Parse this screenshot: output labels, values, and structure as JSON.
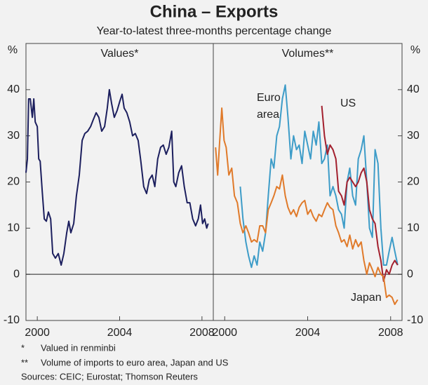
{
  "title": "China – Exports",
  "subtitle": "Year-to-latest three-months percentage change",
  "notes": [
    {
      "marker": "*",
      "text": "Valued in renminbi"
    },
    {
      "marker": "**",
      "text": "Volume of imports to euro area, Japan and US"
    }
  ],
  "sources": "Sources:  CEIC; Eurostat; Thomson Reuters",
  "chart_data": [
    {
      "type": "line",
      "title": "Values*",
      "y_label": "%",
      "axis_side": "left",
      "xlim": [
        1999.45,
        2008.55
      ],
      "xticks": [
        2000,
        2004,
        2008
      ],
      "ylim": [
        -10,
        50
      ],
      "yticks": [
        -10,
        0,
        10,
        20,
        30,
        40
      ],
      "x": [
        1999.45,
        1999.52,
        1999.58,
        1999.66,
        1999.76,
        1999.83,
        1999.9,
        2000.0,
        2000.07,
        2000.14,
        2000.24,
        2000.34,
        2000.44,
        2000.54,
        2000.65,
        2000.75,
        2000.88,
        2001.02,
        2001.16,
        2001.29,
        2001.43,
        2001.53,
        2001.63,
        2001.77,
        2001.9,
        2002.04,
        2002.18,
        2002.31,
        2002.45,
        2002.59,
        2002.72,
        2002.86,
        2002.99,
        2003.13,
        2003.27,
        2003.4,
        2003.5,
        2003.61,
        2003.74,
        2003.88,
        2004.01,
        2004.12,
        2004.22,
        2004.35,
        2004.49,
        2004.63,
        2004.76,
        2004.9,
        2005.03,
        2005.17,
        2005.31,
        2005.44,
        2005.58,
        2005.71,
        2005.85,
        2005.99,
        2006.12,
        2006.26,
        2006.39,
        2006.53,
        2006.63,
        2006.73,
        2006.87,
        2007.01,
        2007.14,
        2007.28,
        2007.41,
        2007.55,
        2007.69,
        2007.82,
        2007.93,
        2008.03,
        2008.13,
        2008.23,
        2008.3
      ],
      "series": [
        {
          "name": "Values",
          "color": "#1c1f5e",
          "values": [
            22,
            25,
            38,
            38,
            34,
            38,
            33,
            32,
            25,
            24.5,
            18,
            12,
            11.5,
            13.5,
            12,
            4.5,
            3.5,
            4.5,
            2,
            4.5,
            9,
            11.5,
            9,
            11,
            17,
            21.5,
            29,
            30.5,
            31,
            32,
            33.5,
            35,
            34,
            31,
            32,
            36,
            40,
            37,
            34,
            35.5,
            37.5,
            39,
            36,
            35,
            33,
            30,
            30.5,
            29,
            24.5,
            19,
            17.5,
            20.5,
            21.5,
            19,
            25,
            27.5,
            28,
            26,
            27.5,
            31,
            20,
            19,
            22,
            23.5,
            19,
            15.5,
            15.5,
            12,
            10.5,
            12,
            15,
            11,
            12,
            10,
            11
          ]
        }
      ]
    },
    {
      "type": "line",
      "title": "Volumes**",
      "y_label": "%",
      "axis_side": "right",
      "xlim": [
        1999.45,
        2008.55
      ],
      "xticks": [
        2000,
        2004,
        2008
      ],
      "ylim": [
        -10,
        50
      ],
      "yticks": [
        -10,
        0,
        10,
        20,
        30,
        40
      ],
      "x": [
        1999.56,
        1999.66,
        1999.76,
        1999.86,
        1999.97,
        2000.07,
        2000.2,
        2000.34,
        2000.47,
        2000.61,
        2000.75,
        2000.88,
        2001.02,
        2001.15,
        2001.29,
        2001.42,
        2001.56,
        2001.69,
        2001.83,
        2001.97,
        2002.1,
        2002.24,
        2002.37,
        2002.51,
        2002.64,
        2002.78,
        2002.92,
        2003.05,
        2003.19,
        2003.32,
        2003.46,
        2003.59,
        2003.73,
        2003.86,
        2004.0,
        2004.14,
        2004.27,
        2004.41,
        2004.54,
        2004.68,
        2004.81,
        2004.95,
        2005.08,
        2005.22,
        2005.36,
        2005.49,
        2005.63,
        2005.76,
        2005.9,
        2006.03,
        2006.17,
        2006.31,
        2006.44,
        2006.58,
        2006.71,
        2006.85,
        2006.98,
        2007.12,
        2007.25,
        2007.39,
        2007.53,
        2007.66,
        2007.8,
        2007.93,
        2008.07,
        2008.2,
        2008.34
      ],
      "series": [
        {
          "name": "Euro area",
          "color": "#3d9cc8",
          "values": [
            null,
            null,
            null,
            null,
            null,
            null,
            null,
            null,
            null,
            null,
            19,
            12,
            7,
            4,
            1.5,
            4,
            2,
            7,
            5,
            9,
            17,
            25,
            23,
            30,
            32,
            38,
            41,
            34,
            25,
            30,
            27,
            28,
            24,
            31,
            28,
            25,
            31,
            28,
            33,
            24,
            25,
            28,
            17,
            19,
            17,
            14,
            13,
            10,
            20,
            23,
            17,
            15,
            25,
            27,
            30,
            20,
            10,
            8,
            27,
            24,
            10,
            2,
            2,
            5,
            8,
            5,
            2
          ]
        },
        {
          "name": "US",
          "color": "#a3202e",
          "values": [
            null,
            null,
            null,
            null,
            null,
            null,
            null,
            null,
            null,
            null,
            null,
            null,
            null,
            null,
            null,
            null,
            null,
            null,
            null,
            null,
            null,
            null,
            null,
            null,
            null,
            null,
            null,
            null,
            null,
            null,
            null,
            null,
            null,
            null,
            null,
            null,
            null,
            null,
            null,
            36.5,
            30,
            26,
            28,
            27,
            25,
            18,
            17,
            15,
            20,
            21,
            20,
            19,
            20,
            22,
            23,
            20,
            14,
            12,
            11,
            6,
            3,
            -1.5,
            1,
            0,
            2,
            3,
            2
          ]
        },
        {
          "name": "Japan",
          "color": "#e07a2a",
          "values": [
            27.5,
            21.5,
            29,
            36,
            29,
            27.5,
            21.5,
            23,
            17,
            15.5,
            11,
            9,
            10.5,
            9,
            7,
            7.5,
            7,
            10.5,
            10.5,
            9,
            14,
            15.5,
            17,
            19,
            18.5,
            21.5,
            17,
            14.5,
            13,
            14,
            12.5,
            14.5,
            15.5,
            16,
            13,
            14,
            12.5,
            11.5,
            13,
            12.5,
            14,
            15.5,
            14.5,
            14,
            10.5,
            9,
            7,
            7.5,
            6,
            8.5,
            5.5,
            7.5,
            6,
            7,
            3,
            0,
            2.5,
            1,
            -0.5,
            1.5,
            0,
            -0.5,
            -5,
            -4.5,
            -5,
            -6.5,
            -5.5
          ]
        }
      ]
    }
  ]
}
